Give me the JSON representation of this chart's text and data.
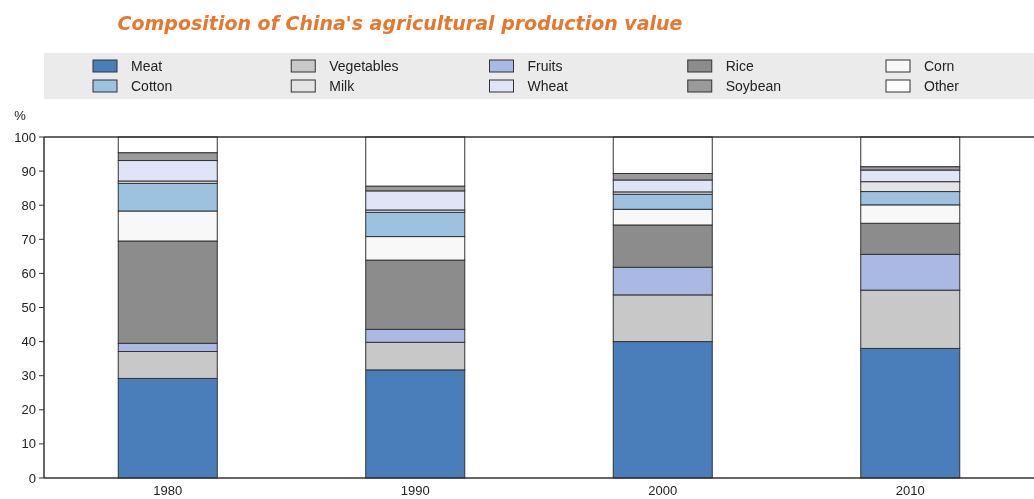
{
  "chart_data": {
    "type": "bar",
    "title": "Composition of China's agricultural production value",
    "ylabel": "%",
    "stacked": true,
    "legend": "top",
    "categories": [
      "1980",
      "1990",
      "2000",
      "2010"
    ],
    "series": [
      {
        "name": "Meat",
        "color": "#4a7ebb",
        "values": [
          29.2,
          31.7,
          40.0,
          38.0
        ]
      },
      {
        "name": "Vegetables",
        "color": "#c8c8c8",
        "values": [
          7.9,
          8.1,
          13.7,
          17.1
        ]
      },
      {
        "name": "Fruits",
        "color": "#aab8e4",
        "values": [
          2.4,
          3.8,
          8.1,
          10.5
        ]
      },
      {
        "name": "Rice",
        "color": "#8c8c8c",
        "values": [
          30.0,
          20.3,
          12.4,
          9.1
        ]
      },
      {
        "name": "Corn",
        "color": "#f8f8f8",
        "values": [
          8.8,
          6.9,
          4.6,
          5.4
        ]
      },
      {
        "name": "Cotton",
        "color": "#9cc2e0",
        "values": [
          8.1,
          7.1,
          4.4,
          3.9
        ]
      },
      {
        "name": "Milk",
        "color": "#e4e4e4",
        "values": [
          0.7,
          0.7,
          0.7,
          2.9
        ]
      },
      {
        "name": "Wheat",
        "color": "#dfe4f6",
        "values": [
          6.0,
          5.6,
          3.5,
          3.4
        ]
      },
      {
        "name": "Soybean",
        "color": "#9a9a9a",
        "values": [
          2.3,
          1.4,
          1.9,
          1.0
        ]
      },
      {
        "name": "Other",
        "color": "#ffffff",
        "values": [
          4.6,
          14.4,
          10.7,
          8.7
        ]
      }
    ],
    "ylim": [
      0,
      100
    ],
    "yticks": [
      0,
      10,
      20,
      30,
      40,
      50,
      60,
      70,
      80,
      90,
      100
    ]
  }
}
